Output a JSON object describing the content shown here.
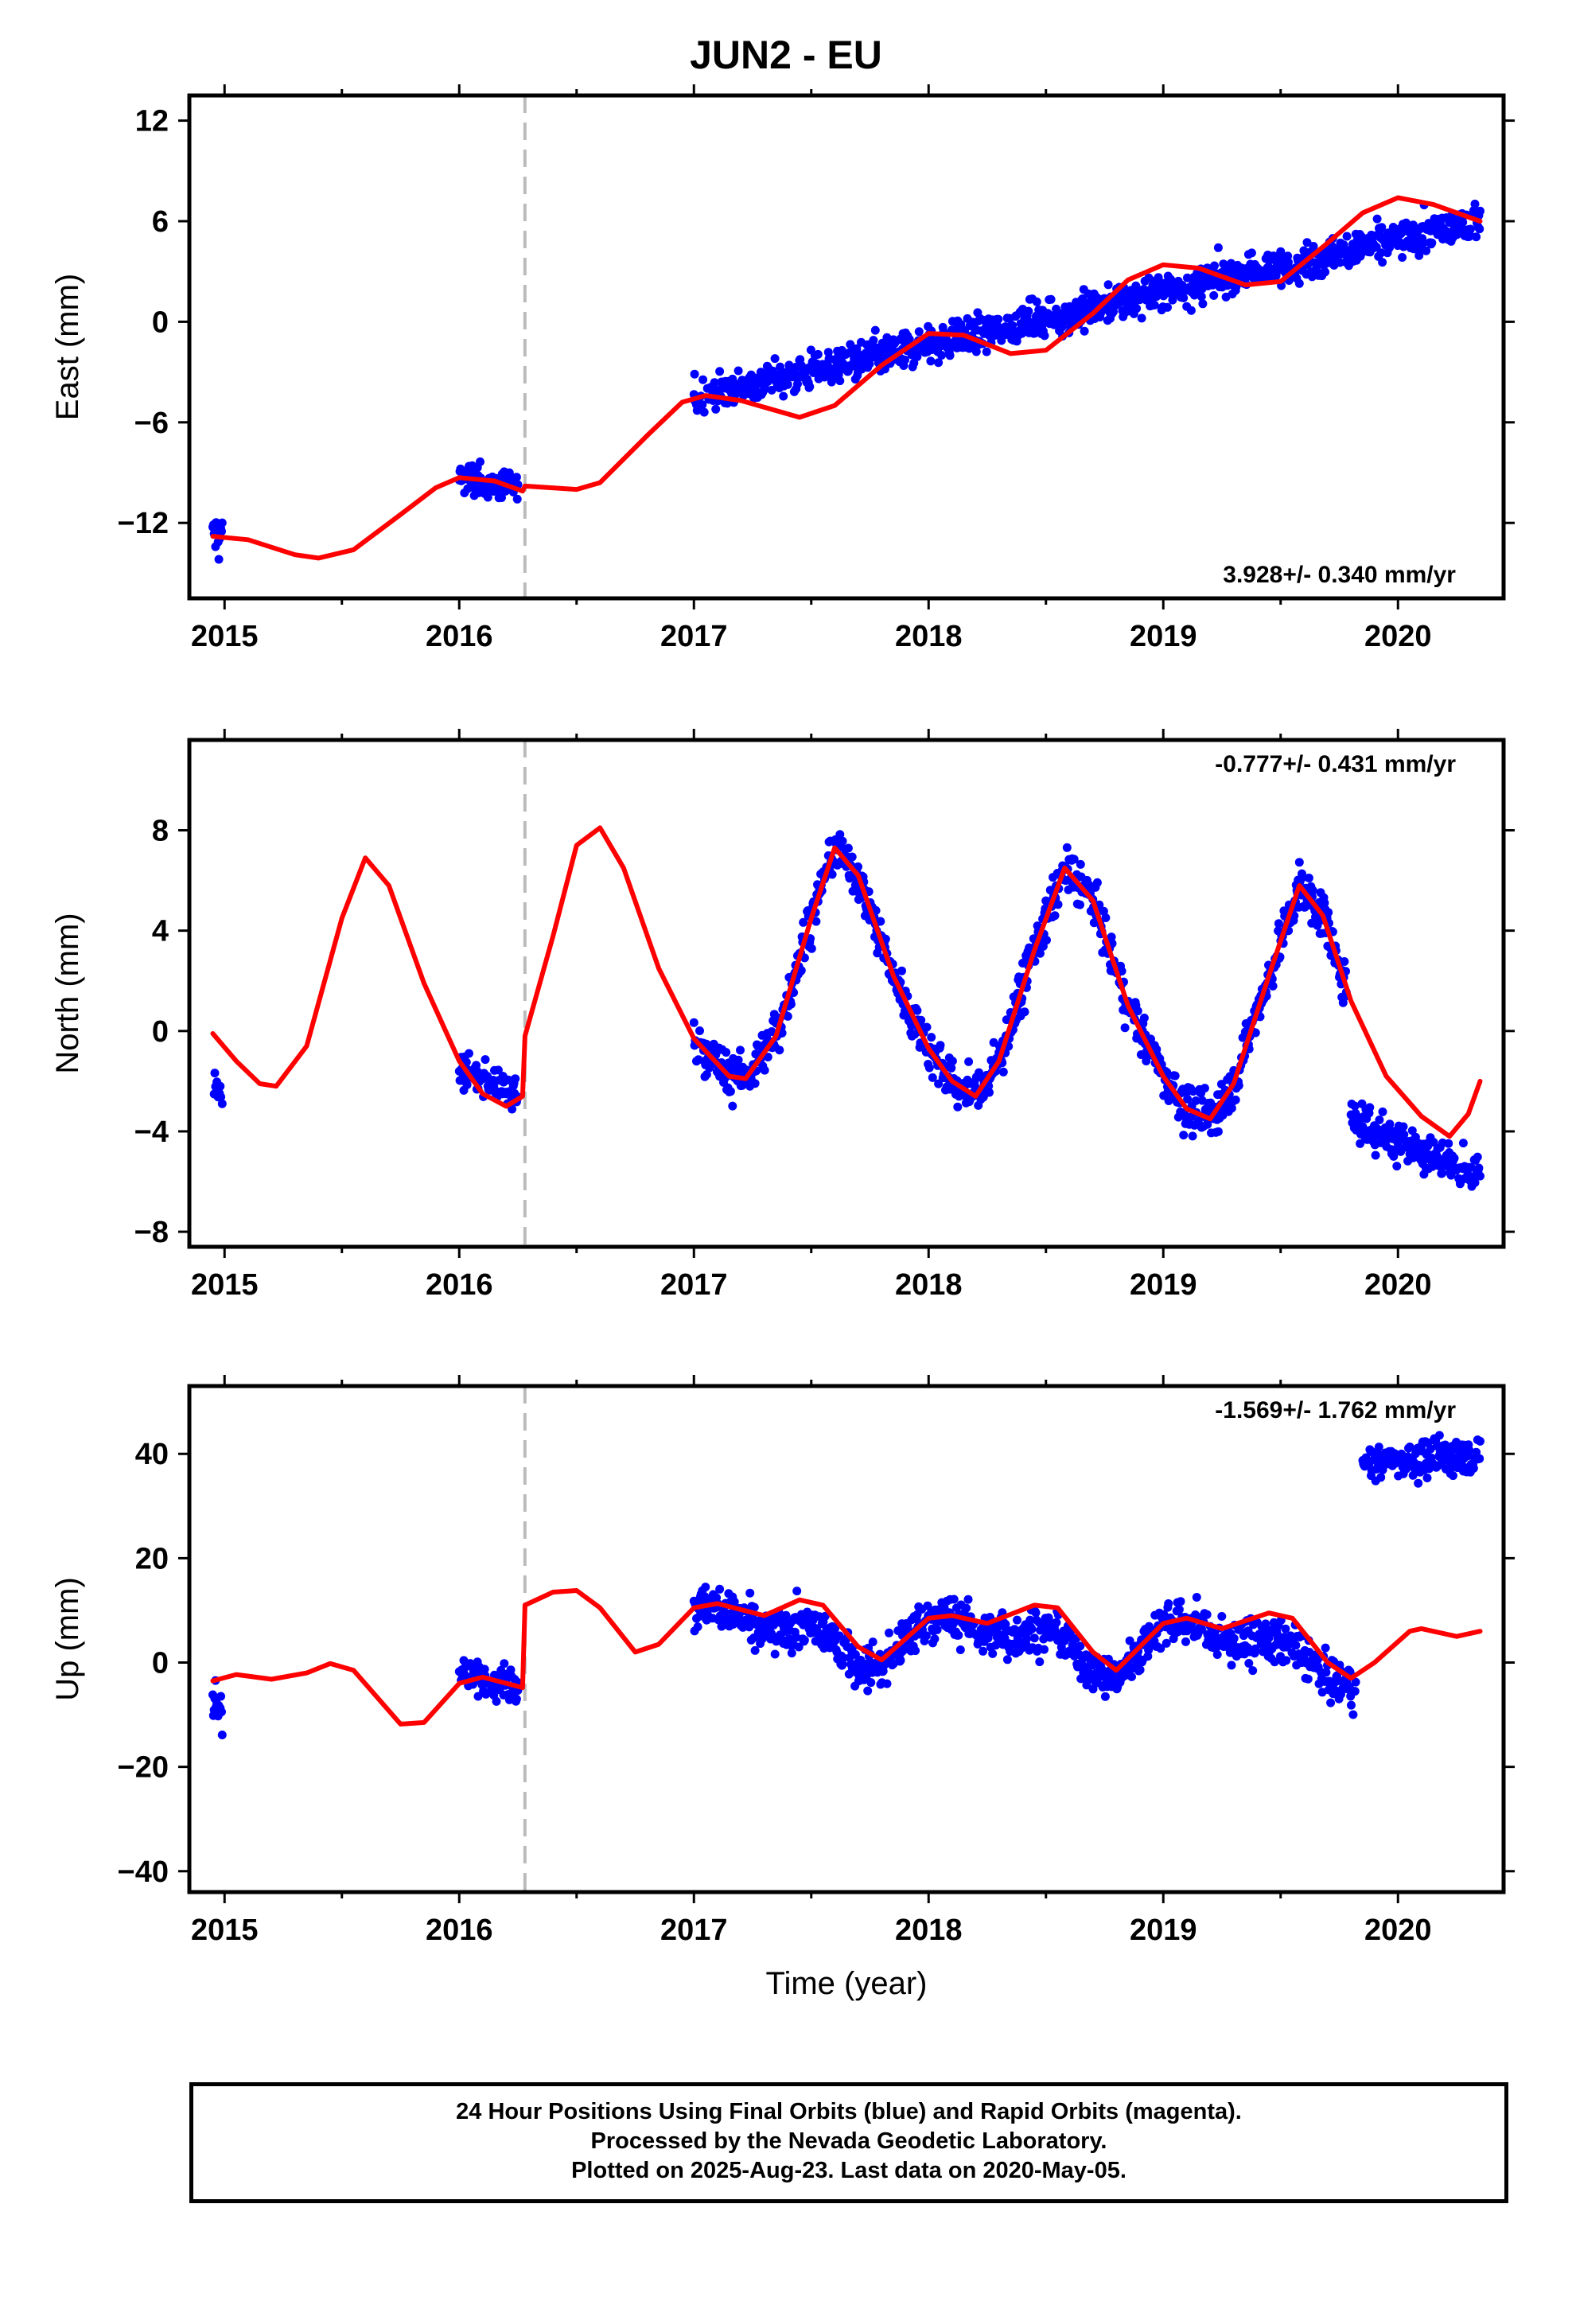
{
  "title": "JUN2 - EU",
  "footer": {
    "line1": "24 Hour Positions Using Final Orbits (blue) and Rapid Orbits (magenta).",
    "line2": "Processed by the Nevada Geodetic Laboratory.",
    "line3": "Plotted on 2025-Aug-23. Last data on 2020-May-05."
  },
  "colors": {
    "data": "#0000ff",
    "model": "#ff0000",
    "event_line": "#bbbbbb"
  },
  "chart_data": [
    {
      "type": "scatter",
      "ylabel": "East (mm)",
      "xlim": [
        2014.85,
        2020.45
      ],
      "ylim": [
        -16.5,
        13.5
      ],
      "xticks": [
        2015,
        2016,
        2017,
        2018,
        2019,
        2020
      ],
      "yticks": [
        -12,
        -6,
        0,
        6,
        12
      ],
      "tick_labels": [
        "−12",
        "−6",
        "0",
        "6",
        "12"
      ],
      "annotation": "3.928+/- 0.340 mm/yr",
      "annotation_pos": "bottom-right",
      "event_line_x": 2016.28,
      "trend": {
        "x0": 2017.0,
        "y0": -4.5,
        "rate": 3.928
      },
      "data_segments": [
        {
          "x": [
            2014.95,
            2014.99
          ],
          "y": [
            -12.7,
            -12.7
          ],
          "noise": 1.8
        },
        {
          "x": [
            2016.0,
            2016.25
          ],
          "y": [
            -9.2,
            -10.0
          ],
          "noise": 1.2
        },
        {
          "x": [
            2017.0,
            2020.35
          ],
          "y": [
            -4.5,
            6.0
          ],
          "noise": 1.4
        }
      ],
      "model": [
        [
          2014.95,
          -12.8
        ],
        [
          2015.1,
          -13.0
        ],
        [
          2015.3,
          -13.9
        ],
        [
          2015.4,
          -14.1
        ],
        [
          2015.55,
          -13.6
        ],
        [
          2015.75,
          -11.5
        ],
        [
          2015.9,
          -9.9
        ],
        [
          2016.0,
          -9.3
        ],
        [
          2016.15,
          -9.5
        ],
        [
          2016.27,
          -10.1
        ],
        [
          2016.28,
          -9.8
        ],
        [
          2016.5,
          -10.0
        ],
        [
          2016.6,
          -9.6
        ],
        [
          2016.8,
          -6.8
        ],
        [
          2016.95,
          -4.8
        ],
        [
          2017.05,
          -4.4
        ],
        [
          2017.2,
          -4.7
        ],
        [
          2017.45,
          -5.7
        ],
        [
          2017.6,
          -5.0
        ],
        [
          2017.8,
          -2.6
        ],
        [
          2018.0,
          -0.7
        ],
        [
          2018.15,
          -0.8
        ],
        [
          2018.35,
          -1.9
        ],
        [
          2018.5,
          -1.7
        ],
        [
          2018.7,
          0.5
        ],
        [
          2018.85,
          2.5
        ],
        [
          2019.0,
          3.4
        ],
        [
          2019.15,
          3.2
        ],
        [
          2019.35,
          2.2
        ],
        [
          2019.5,
          2.4
        ],
        [
          2019.7,
          4.7
        ],
        [
          2019.85,
          6.5
        ],
        [
          2020.0,
          7.4
        ],
        [
          2020.15,
          7.0
        ],
        [
          2020.35,
          6.0
        ]
      ]
    },
    {
      "type": "scatter",
      "ylabel": "North (mm)",
      "xlim": [
        2014.85,
        2020.45
      ],
      "ylim": [
        -8.6,
        11.6
      ],
      "xticks": [
        2015,
        2016,
        2017,
        2018,
        2019,
        2020
      ],
      "yticks": [
        -8,
        -4,
        0,
        4,
        8
      ],
      "tick_labels": [
        "−8",
        "−4",
        "0",
        "4",
        "8"
      ],
      "annotation": "-0.777+/- 0.431 mm/yr",
      "annotation_pos": "top-right",
      "event_line_x": 2016.28,
      "data_segments": [
        {
          "x": [
            2014.95,
            2014.99
          ],
          "y": [
            -1.7,
            -2.5
          ],
          "noise": 0.8
        },
        {
          "x": [
            2016.0,
            2016.25
          ],
          "y": [
            -1.5,
            -2.6
          ],
          "noise": 0.9
        },
        {
          "x": [
            2017.0,
            2019.78
          ],
          "y": [
            0,
            0
          ],
          "noise": 1.2,
          "follow_model": true
        },
        {
          "x": [
            2019.8,
            2020.35
          ],
          "y": [
            -3.5,
            -5.8
          ],
          "noise": 1.2
        }
      ],
      "model": [
        [
          2014.95,
          -0.1
        ],
        [
          2015.05,
          -1.2
        ],
        [
          2015.15,
          -2.1
        ],
        [
          2015.22,
          -2.2
        ],
        [
          2015.35,
          -0.6
        ],
        [
          2015.5,
          4.5
        ],
        [
          2015.6,
          6.9
        ],
        [
          2015.7,
          5.8
        ],
        [
          2015.85,
          1.9
        ],
        [
          2016.0,
          -1.2
        ],
        [
          2016.1,
          -2.5
        ],
        [
          2016.2,
          -3.0
        ],
        [
          2016.27,
          -2.6
        ],
        [
          2016.28,
          -0.2
        ],
        [
          2016.4,
          3.8
        ],
        [
          2016.5,
          7.4
        ],
        [
          2016.6,
          8.1
        ],
        [
          2016.7,
          6.5
        ],
        [
          2016.85,
          2.5
        ],
        [
          2017.0,
          -0.3
        ],
        [
          2017.15,
          -1.8
        ],
        [
          2017.22,
          -1.9
        ],
        [
          2017.35,
          -0.2
        ],
        [
          2017.5,
          4.5
        ],
        [
          2017.6,
          7.3
        ],
        [
          2017.7,
          6.2
        ],
        [
          2017.85,
          2.2
        ],
        [
          2018.0,
          -0.7
        ],
        [
          2018.1,
          -2.0
        ],
        [
          2018.2,
          -2.6
        ],
        [
          2018.3,
          -1.2
        ],
        [
          2018.45,
          3.2
        ],
        [
          2018.58,
          6.5
        ],
        [
          2018.7,
          5.2
        ],
        [
          2018.85,
          1.0
        ],
        [
          2019.0,
          -1.8
        ],
        [
          2019.1,
          -3.1
        ],
        [
          2019.2,
          -3.5
        ],
        [
          2019.3,
          -2.1
        ],
        [
          2019.45,
          2.2
        ],
        [
          2019.58,
          5.8
        ],
        [
          2019.68,
          4.6
        ],
        [
          2019.8,
          1.2
        ],
        [
          2019.95,
          -1.8
        ],
        [
          2020.1,
          -3.4
        ],
        [
          2020.22,
          -4.2
        ],
        [
          2020.3,
          -3.3
        ],
        [
          2020.35,
          -2.0
        ]
      ]
    },
    {
      "type": "scatter",
      "ylabel": "Up (mm)",
      "xlim": [
        2014.85,
        2020.45
      ],
      "ylim": [
        -44,
        53
      ],
      "xticks": [
        2015,
        2016,
        2017,
        2018,
        2019,
        2020
      ],
      "yticks": [
        -40,
        -20,
        0,
        20,
        40
      ],
      "tick_labels": [
        "−40",
        "−20",
        "0",
        "20",
        "40"
      ],
      "xlabel": "Time (year)",
      "annotation": "-1.569+/- 1.762 mm/yr",
      "annotation_pos": "top-right",
      "event_line_x": 2016.28,
      "data_segments": [
        {
          "x": [
            2014.95,
            2014.99
          ],
          "y": [
            -8,
            -8
          ],
          "noise": 6.5
        },
        {
          "x": [
            2016.0,
            2016.25
          ],
          "y": [
            -2,
            -4
          ],
          "noise": 4.5
        },
        {
          "x": [
            2017.0,
            2019.82
          ],
          "y": [
            0,
            0
          ],
          "noise": 5.5,
          "follow_model": true,
          "seasonal_offset": -5
        },
        {
          "x": [
            2019.85,
            2020.35
          ],
          "y": [
            38,
            40
          ],
          "noise": 4.5
        }
      ],
      "model": [
        [
          2014.95,
          -3.5
        ],
        [
          2015.05,
          -2.3
        ],
        [
          2015.2,
          -3.2
        ],
        [
          2015.35,
          -2.0
        ],
        [
          2015.45,
          -0.2
        ],
        [
          2015.55,
          -1.5
        ],
        [
          2015.75,
          -11.8
        ],
        [
          2015.85,
          -11.5
        ],
        [
          2016.0,
          -4.0
        ],
        [
          2016.1,
          -2.8
        ],
        [
          2016.27,
          -4.8
        ],
        [
          2016.28,
          11.0
        ],
        [
          2016.4,
          13.5
        ],
        [
          2016.5,
          13.8
        ],
        [
          2016.6,
          10.5
        ],
        [
          2016.75,
          2.0
        ],
        [
          2016.85,
          3.5
        ],
        [
          2017.0,
          10.5
        ],
        [
          2017.1,
          11.3
        ],
        [
          2017.3,
          9.0
        ],
        [
          2017.45,
          12.0
        ],
        [
          2017.55,
          11.0
        ],
        [
          2017.7,
          3.0
        ],
        [
          2017.8,
          0.5
        ],
        [
          2018.0,
          8.5
        ],
        [
          2018.1,
          9.0
        ],
        [
          2018.25,
          7.5
        ],
        [
          2018.45,
          11.0
        ],
        [
          2018.55,
          10.5
        ],
        [
          2018.7,
          2.0
        ],
        [
          2018.8,
          -1.5
        ],
        [
          2019.0,
          7.5
        ],
        [
          2019.1,
          8.5
        ],
        [
          2019.25,
          6.5
        ],
        [
          2019.45,
          9.5
        ],
        [
          2019.55,
          8.5
        ],
        [
          2019.7,
          0.0
        ],
        [
          2019.8,
          -3.0
        ],
        [
          2019.9,
          0.0
        ],
        [
          2020.05,
          6.0
        ],
        [
          2020.1,
          6.5
        ],
        [
          2020.25,
          5.0
        ],
        [
          2020.35,
          6.0
        ]
      ]
    }
  ]
}
